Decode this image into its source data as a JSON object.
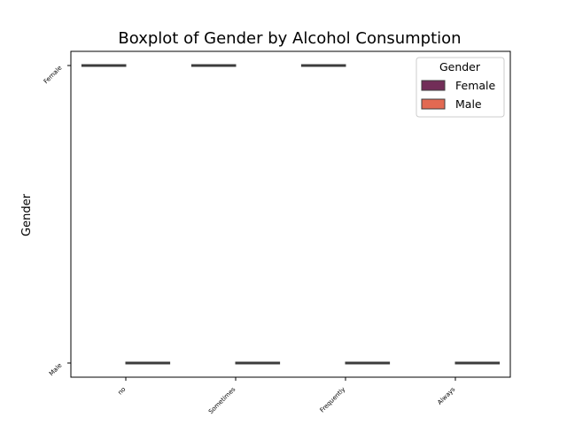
{
  "chart_data": {
    "type": "boxplot",
    "title": "Boxplot of Gender by Alcohol Consumption",
    "xlabel": "",
    "ylabel": "Gender",
    "categories": [
      "no",
      "Sometimes",
      "Frequently",
      "Always"
    ],
    "y_categories": [
      "Female",
      "Male"
    ],
    "legend": {
      "title": "Gender",
      "position": "top-right",
      "entries": [
        "Female",
        "Male"
      ]
    },
    "series": [
      {
        "name": "Female",
        "color": "#722e58",
        "values": [
          {
            "category": "no",
            "value": "Female"
          },
          {
            "category": "Sometimes",
            "value": "Female"
          },
          {
            "category": "Frequently",
            "value": "Female"
          },
          {
            "category": "Always",
            "value": null
          }
        ]
      },
      {
        "name": "Male",
        "color": "#e26952",
        "values": [
          {
            "category": "no",
            "value": "Male"
          },
          {
            "category": "Sometimes",
            "value": "Male"
          },
          {
            "category": "Frequently",
            "value": "Male"
          },
          {
            "category": "Always",
            "value": "Male"
          }
        ]
      }
    ],
    "grid": false
  }
}
